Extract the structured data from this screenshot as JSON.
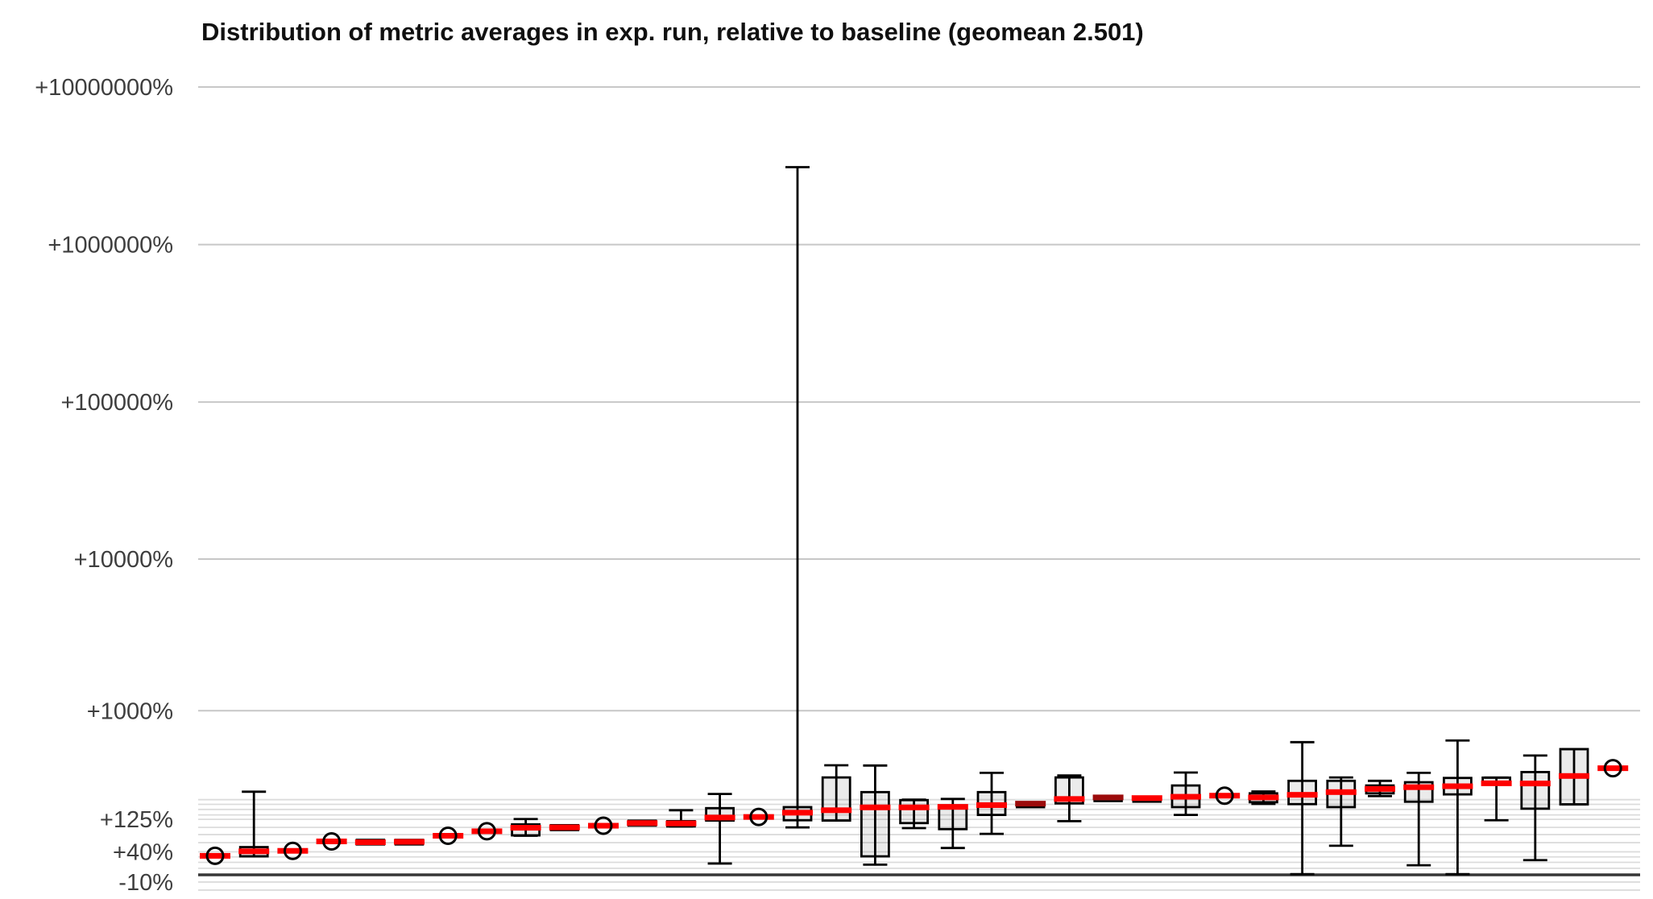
{
  "chart_data": {
    "type": "boxplot",
    "title": "Distribution of metric averages in exp. run, relative to baseline (geomean 2.501)",
    "geomean": 2.501,
    "x_axis": {
      "labels_visible": false,
      "num_items": 37
    },
    "y_axis": {
      "unit": "percent relative to baseline",
      "scale": "log10(1 + pct/100)",
      "ticks": [
        {
          "label": "+10000000%",
          "pct": 10000000,
          "major": true
        },
        {
          "label": "+1000000%",
          "pct": 1000000,
          "major": true
        },
        {
          "label": "+100000%",
          "pct": 100000,
          "major": true
        },
        {
          "label": "+10000%",
          "pct": 10000,
          "major": true
        },
        {
          "label": "+1000%",
          "pct": 1000,
          "major": true
        },
        {
          "label": "+125%",
          "pct": 125,
          "major": false
        },
        {
          "label": "+40%",
          "pct": 40,
          "major": false
        },
        {
          "label": "-10%",
          "pct": -10,
          "major": false
        }
      ],
      "minor_pcts": [
        200,
        180,
        160,
        140,
        100,
        80,
        60,
        30,
        20,
        10,
        -20
      ],
      "baseline_pct": 0
    },
    "legend": {
      "visible": false
    },
    "grid": true,
    "boxes": [
      {
        "type": "circle",
        "median": 32
      },
      {
        "type": "box",
        "median": 41,
        "q1": 31,
        "q3": 50,
        "lo": 31,
        "hi": 237
      },
      {
        "type": "circle",
        "median": 42
      },
      {
        "type": "circle",
        "median": 63
      },
      {
        "type": "dash",
        "median": 61,
        "q1": 58,
        "q3": 67
      },
      {
        "type": "dash",
        "median": 62,
        "q1": 58,
        "q3": 67
      },
      {
        "type": "circle",
        "median": 77
      },
      {
        "type": "circle",
        "median": 89
      },
      {
        "type": "box",
        "median": 99,
        "q1": 78,
        "q3": 109,
        "lo": 77,
        "hi": 126
      },
      {
        "type": "dash",
        "median": 100,
        "q1": 92,
        "q3": 107
      },
      {
        "type": "circle",
        "median": 105
      },
      {
        "type": "dash",
        "median": 113,
        "q1": 105,
        "q3": 121
      },
      {
        "type": "box",
        "median": 112,
        "q1": 103,
        "q3": 119,
        "lo": 103,
        "hi": 157
      },
      {
        "type": "box",
        "median": 131,
        "q1": 121,
        "q3": 165,
        "lo": 18,
        "hi": 226
      },
      {
        "type": "circle",
        "median": 133
      },
      {
        "type": "box",
        "median": 148,
        "q1": 122,
        "q3": 169,
        "lo": 100,
        "hi": 3100000
      },
      {
        "type": "box",
        "median": 157,
        "q1": 121,
        "q3": 315,
        "lo": 121,
        "hi": 396
      },
      {
        "type": "box",
        "median": 168,
        "q1": 31,
        "q3": 235,
        "lo": 16,
        "hi": 394
      },
      {
        "type": "box",
        "median": 168,
        "q1": 113,
        "q3": 198,
        "lo": 98,
        "hi": 200
      },
      {
        "type": "box",
        "median": 170,
        "q1": 95,
        "q3": 176,
        "lo": 48,
        "hi": 203
      },
      {
        "type": "box",
        "median": 177,
        "q1": 140,
        "q3": 235,
        "lo": 82,
        "hi": 344
      },
      {
        "type": "dash",
        "median": 183,
        "q1": 178,
        "q3": 188,
        "dark": true
      },
      {
        "type": "box",
        "median": 203,
        "q1": 184,
        "q3": 315,
        "lo": 119,
        "hi": 327
      },
      {
        "type": "dash",
        "median": 210,
        "q1": 205,
        "q3": 215,
        "dark": true
      },
      {
        "type": "dash",
        "median": 207,
        "q1": 203,
        "q3": 212
      },
      {
        "type": "box",
        "median": 213,
        "q1": 169,
        "q3": 269,
        "lo": 140,
        "hi": 346
      },
      {
        "type": "circle",
        "median": 218
      },
      {
        "type": "box",
        "median": 210,
        "q1": 189,
        "q3": 229,
        "lo": 182,
        "hi": 238
      },
      {
        "type": "box",
        "median": 222,
        "q1": 181,
        "q3": 295,
        "lo": 1,
        "hi": 595
      },
      {
        "type": "box",
        "median": 235,
        "q1": 169,
        "q3": 295,
        "lo": 53,
        "hi": 315
      },
      {
        "type": "box",
        "median": 251,
        "q1": 229,
        "q3": 269,
        "lo": 216,
        "hi": 295
      },
      {
        "type": "box",
        "median": 260,
        "q1": 191,
        "q3": 287,
        "lo": 15,
        "hi": 344
      },
      {
        "type": "box",
        "median": 265,
        "q1": 224,
        "q3": 312,
        "lo": 1,
        "hi": 612
      },
      {
        "type": "box",
        "median": 281,
        "q1": 276,
        "q3": 314,
        "lo": 122,
        "hi": 314
      },
      {
        "type": "box",
        "median": 280,
        "q1": 163,
        "q3": 349,
        "lo": 24,
        "hi": 472
      },
      {
        "type": "box",
        "median": 324,
        "q1": 180,
        "q3": 528,
        "lo": 180,
        "hi": 528
      },
      {
        "type": "circle",
        "median": 375
      }
    ],
    "colors": {
      "median_red": "#fe0000",
      "median_dark": "#9c0b0b",
      "box_fill": "rgba(0,0,0,0.078)",
      "box_stroke": "#000000",
      "grid_major": "#c7c7c7",
      "grid_minor": "#dcdcdc",
      "baseline": "#363636",
      "tick_text": "#3e3e3e",
      "title_text": "#101010"
    }
  }
}
